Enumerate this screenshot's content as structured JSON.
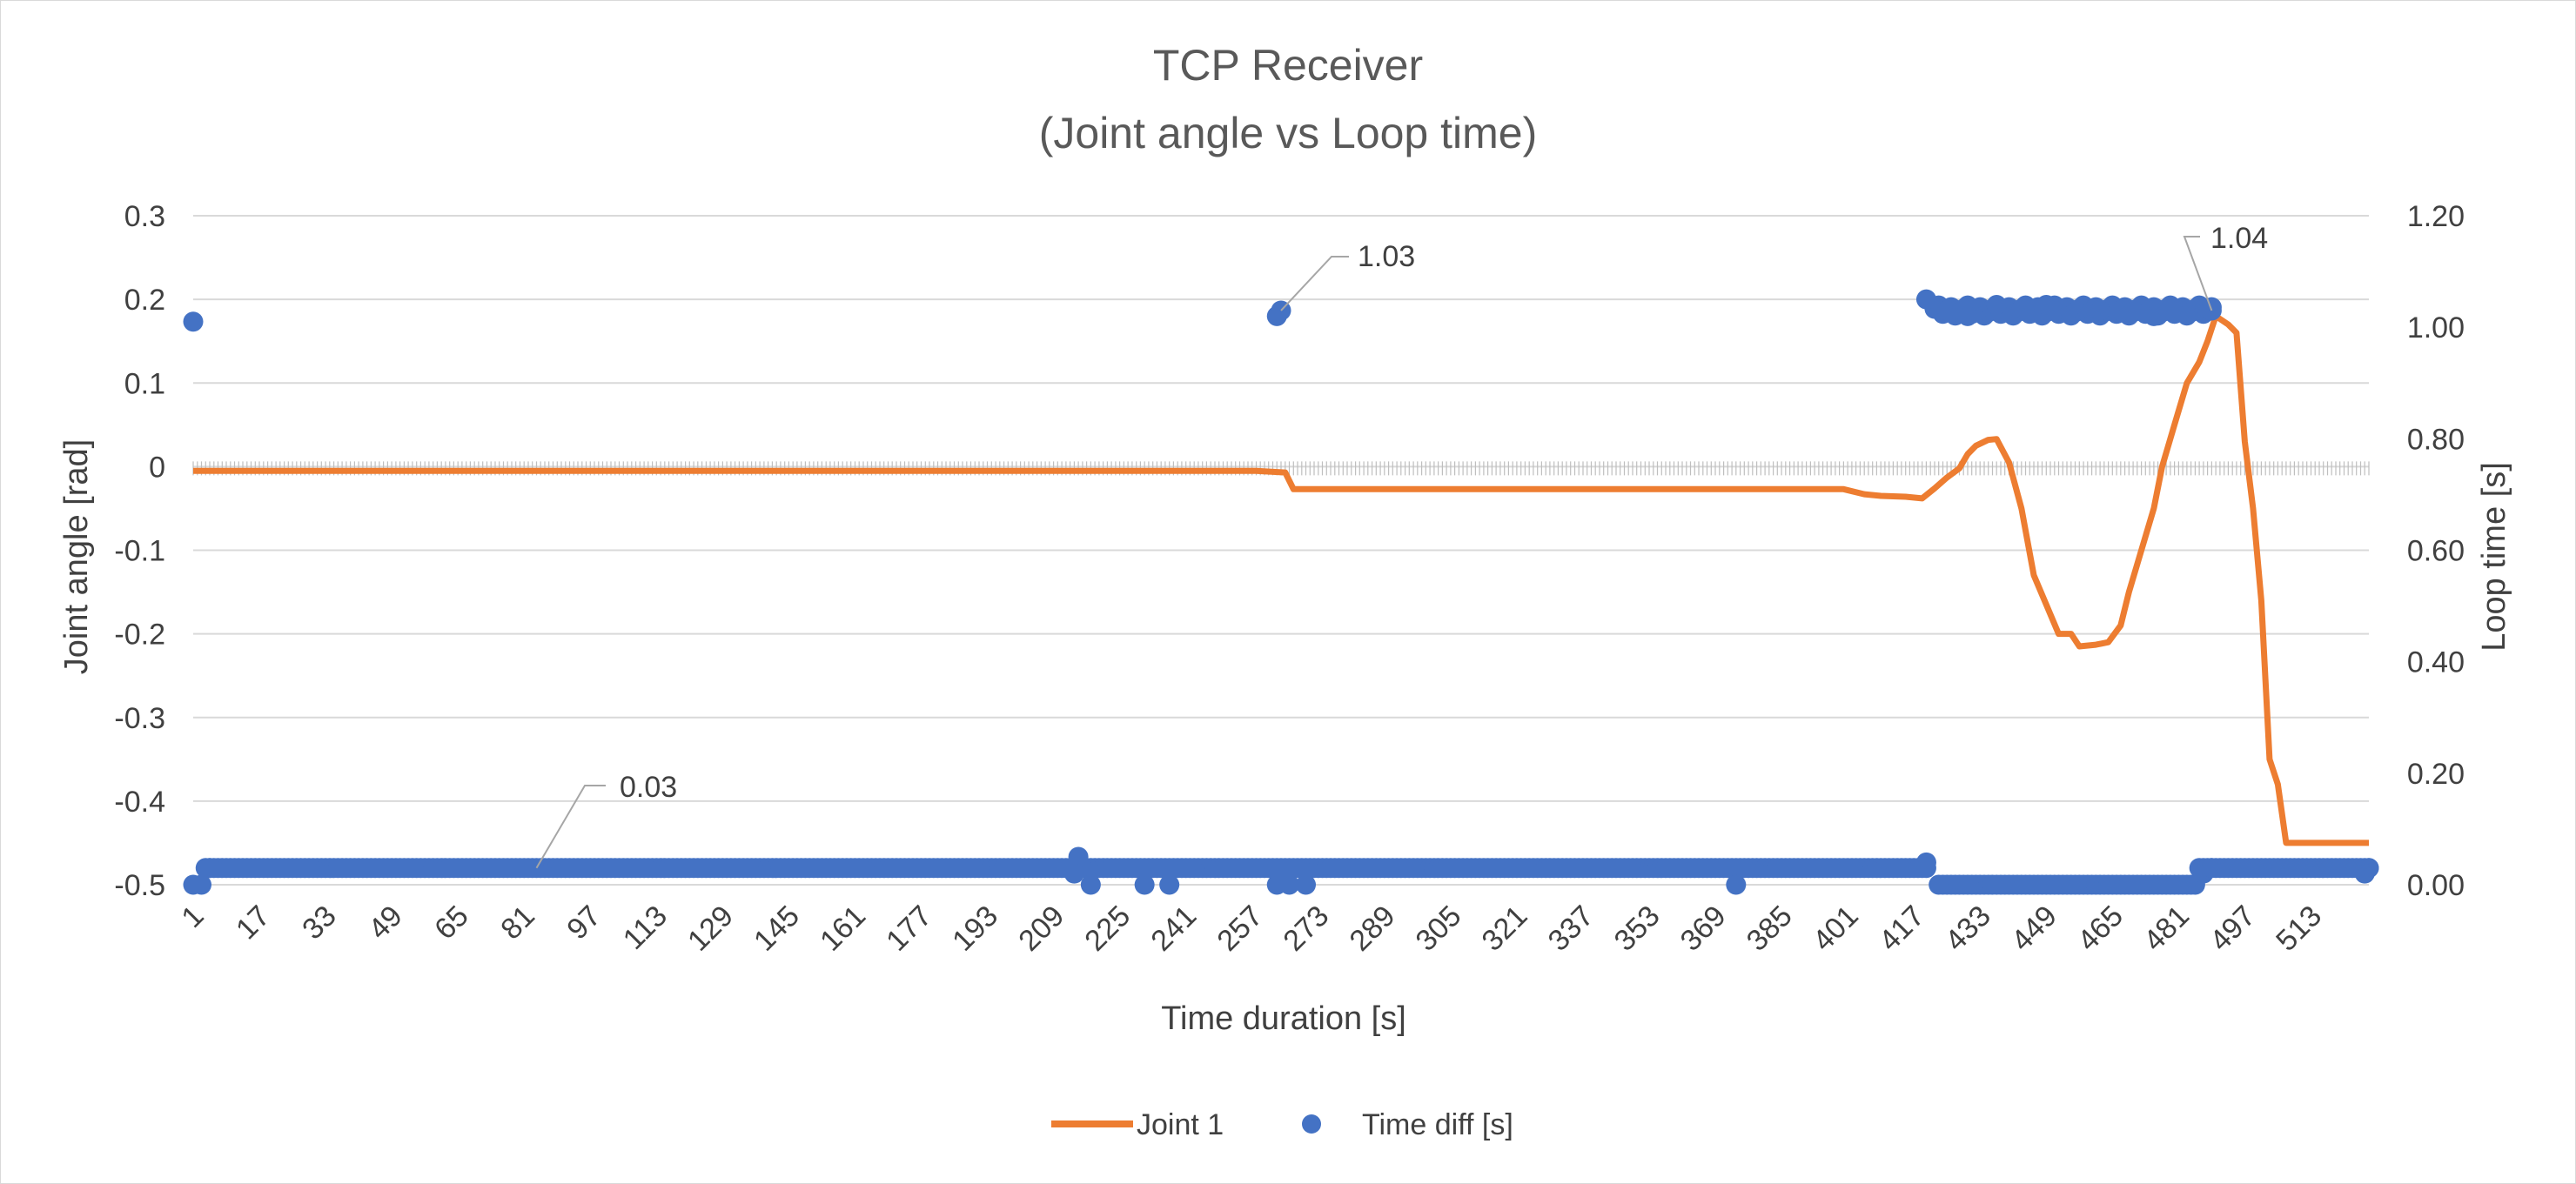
{
  "chart_data": {
    "type": "line+scatter",
    "title": [
      "TCP Receiver",
      "(Joint angle vs Loop time)"
    ],
    "xlabel": "Time duration [s]",
    "ylabel_left": "Joint angle [rad]",
    "ylabel_right": "Loop time [s]",
    "x_range": [
      1,
      527
    ],
    "x_ticks": [
      1,
      17,
      33,
      49,
      65,
      81,
      97,
      113,
      129,
      145,
      161,
      177,
      193,
      209,
      225,
      241,
      257,
      273,
      289,
      305,
      321,
      337,
      353,
      369,
      385,
      401,
      417,
      433,
      449,
      465,
      481,
      497,
      513
    ],
    "y_left": {
      "range": [
        -0.5,
        0.3
      ],
      "ticks": [
        "0.3",
        "0.2",
        "0.1",
        "0",
        "-0.1",
        "-0.2",
        "-0.3",
        "-0.4",
        "-0.5"
      ]
    },
    "y_right": {
      "range": [
        0,
        1.2
      ],
      "ticks": [
        "1.20",
        "1.00",
        "0.80",
        "0.60",
        "0.40",
        "0.20",
        "0.00"
      ]
    },
    "grid": true,
    "legend_position": "bottom",
    "series": [
      {
        "name": "Joint 1",
        "kind": "line",
        "axis": "left",
        "color": "#ED7D31",
        "points": [
          [
            1,
            -0.005
          ],
          [
            258,
            -0.005
          ],
          [
            265,
            -0.007
          ],
          [
            267,
            -0.027
          ],
          [
            400,
            -0.027
          ],
          [
            405,
            -0.033
          ],
          [
            409,
            -0.035
          ],
          [
            415,
            -0.036
          ],
          [
            419,
            -0.038
          ],
          [
            422,
            -0.026
          ],
          [
            425,
            -0.013
          ],
          [
            428,
            -0.002
          ],
          [
            430,
            0.015
          ],
          [
            432,
            0.025
          ],
          [
            435,
            0.032
          ],
          [
            437,
            0.033
          ],
          [
            440,
            0.005
          ],
          [
            443,
            -0.05
          ],
          [
            446,
            -0.13
          ],
          [
            449,
            -0.165
          ],
          [
            452,
            -0.2
          ],
          [
            455,
            -0.2
          ],
          [
            457,
            -0.215
          ],
          [
            461,
            -0.213
          ],
          [
            464,
            -0.21
          ],
          [
            467,
            -0.19
          ],
          [
            469,
            -0.15
          ],
          [
            472,
            -0.1
          ],
          [
            475,
            -0.05
          ],
          [
            477,
            0.0
          ],
          [
            480,
            0.05
          ],
          [
            483,
            0.1
          ],
          [
            486,
            0.125
          ],
          [
            488,
            0.15
          ],
          [
            490,
            0.18
          ],
          [
            493,
            0.17
          ],
          [
            495,
            0.16
          ],
          [
            497,
            0.03
          ],
          [
            499,
            -0.05
          ],
          [
            501,
            -0.16
          ],
          [
            503,
            -0.35
          ],
          [
            505,
            -0.38
          ],
          [
            507,
            -0.45
          ],
          [
            527,
            -0.45
          ]
        ]
      },
      {
        "name": "Time diff [s]",
        "kind": "scatter",
        "axis": "right",
        "color": "#4472C4",
        "baseline_value": 0.03,
        "baseline_x": [
          4,
          420
        ],
        "baseline2_x": [
          486,
          527
        ],
        "zero_run_x": [
          424,
          484
        ],
        "high_run_value": 1.03,
        "high_run_x": [
          420,
          489
        ],
        "points": [
          [
            1,
            1.01
          ],
          [
            1,
            0.0
          ],
          [
            3,
            0.0
          ],
          [
            5,
            0.03
          ],
          [
            263,
            1.02
          ],
          [
            264,
            1.03
          ],
          [
            215,
            0.05
          ],
          [
            214,
            0.02
          ],
          [
            218,
            0.0
          ],
          [
            231,
            0.0
          ],
          [
            237,
            0.0
          ],
          [
            263,
            0.0
          ],
          [
            266,
            0.0
          ],
          [
            270,
            0.0
          ],
          [
            374,
            0.0
          ],
          [
            420,
            1.05
          ],
          [
            420,
            0.04
          ],
          [
            423,
            0.0
          ],
          [
            425,
            1.03
          ],
          [
            430,
            1.02
          ],
          [
            437,
            1.04
          ],
          [
            449,
            1.04
          ],
          [
            462,
            1.03
          ],
          [
            475,
            1.02
          ],
          [
            489,
            1.03
          ],
          [
            485,
            0.0
          ],
          [
            487,
            0.02
          ],
          [
            489,
            0.03
          ],
          [
            527,
            0.03
          ],
          [
            526,
            0.02
          ]
        ]
      }
    ],
    "data_labels": [
      "0.03",
      "1.03",
      "1.04"
    ],
    "legend": [
      {
        "label": "Joint 1",
        "color": "#ED7D31",
        "marker": "line"
      },
      {
        "label": "Time diff [s]",
        "color": "#4472C4",
        "marker": "circle"
      }
    ]
  }
}
